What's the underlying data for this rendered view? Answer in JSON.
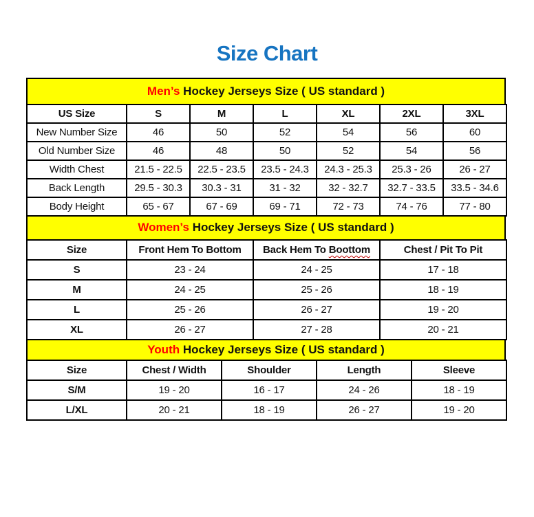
{
  "title": "Size Chart",
  "colors": {
    "title_blue": "#1674c1",
    "banner_yellow": "#ffff00",
    "accent_red": "#ff0000",
    "border_black": "#000000"
  },
  "sections": [
    {
      "name": "mens",
      "banner": {
        "highlight": "Men’s",
        "rest": " Hockey Jerseys Size ( US standard )"
      },
      "columns": [
        "US Size",
        "S",
        "M",
        "L",
        "XL",
        "2XL",
        "3XL"
      ],
      "rows": [
        {
          "label": "New Number Size",
          "values": [
            "46",
            "50",
            "52",
            "54",
            "56",
            "60"
          ]
        },
        {
          "label": "Old Number Size",
          "values": [
            "46",
            "48",
            "50",
            "52",
            "54",
            "56"
          ]
        },
        {
          "label": "Width Chest",
          "values": [
            "21.5 - 22.5",
            "22.5 - 23.5",
            "23.5 - 24.3",
            "24.3 - 25.3",
            "25.3 - 26",
            "26 - 27"
          ]
        },
        {
          "label": "Back Length",
          "values": [
            "29.5 - 30.3",
            "30.3 - 31",
            "31 - 32",
            "32 - 32.7",
            "32.7 - 33.5",
            "33.5 - 34.6"
          ]
        },
        {
          "label": "Body Height",
          "values": [
            "65 - 67",
            "67 - 69",
            "69 - 71",
            "72 - 73",
            "74 - 76",
            "77 - 80"
          ]
        }
      ]
    },
    {
      "name": "womens",
      "banner": {
        "highlight": "Women’s",
        "rest": " Hockey Jerseys Size ( US standard )"
      },
      "columns": [
        "Size",
        "Front Hem To Bottom",
        "Back Hem To Boottom",
        "Chest / Pit To Pit"
      ],
      "spellcheck": {
        "column_index": 2,
        "underlined_word": "Boottom"
      },
      "rows": [
        {
          "label": "S",
          "values": [
            "23 - 24",
            "24 - 25",
            "17 - 18"
          ]
        },
        {
          "label": "M",
          "values": [
            "24 - 25",
            "25 - 26",
            "18 - 19"
          ]
        },
        {
          "label": "L",
          "values": [
            "25 - 26",
            "26 - 27",
            "19 - 20"
          ]
        },
        {
          "label": "XL",
          "values": [
            "26 - 27",
            "27 - 28",
            "20 - 21"
          ]
        }
      ]
    },
    {
      "name": "youth",
      "banner": {
        "highlight": "Youth",
        "rest": " Hockey Jerseys Size ( US standard )"
      },
      "columns": [
        "Size",
        "Chest / Width",
        "Shoulder",
        "Length",
        "Sleeve"
      ],
      "rows": [
        {
          "label": "S/M",
          "values": [
            "19 - 20",
            "16 - 17",
            "24 - 26",
            "18 - 19"
          ]
        },
        {
          "label": "L/XL",
          "values": [
            "20 - 21",
            "18 - 19",
            "26 - 27",
            "19 - 20"
          ]
        }
      ]
    }
  ]
}
